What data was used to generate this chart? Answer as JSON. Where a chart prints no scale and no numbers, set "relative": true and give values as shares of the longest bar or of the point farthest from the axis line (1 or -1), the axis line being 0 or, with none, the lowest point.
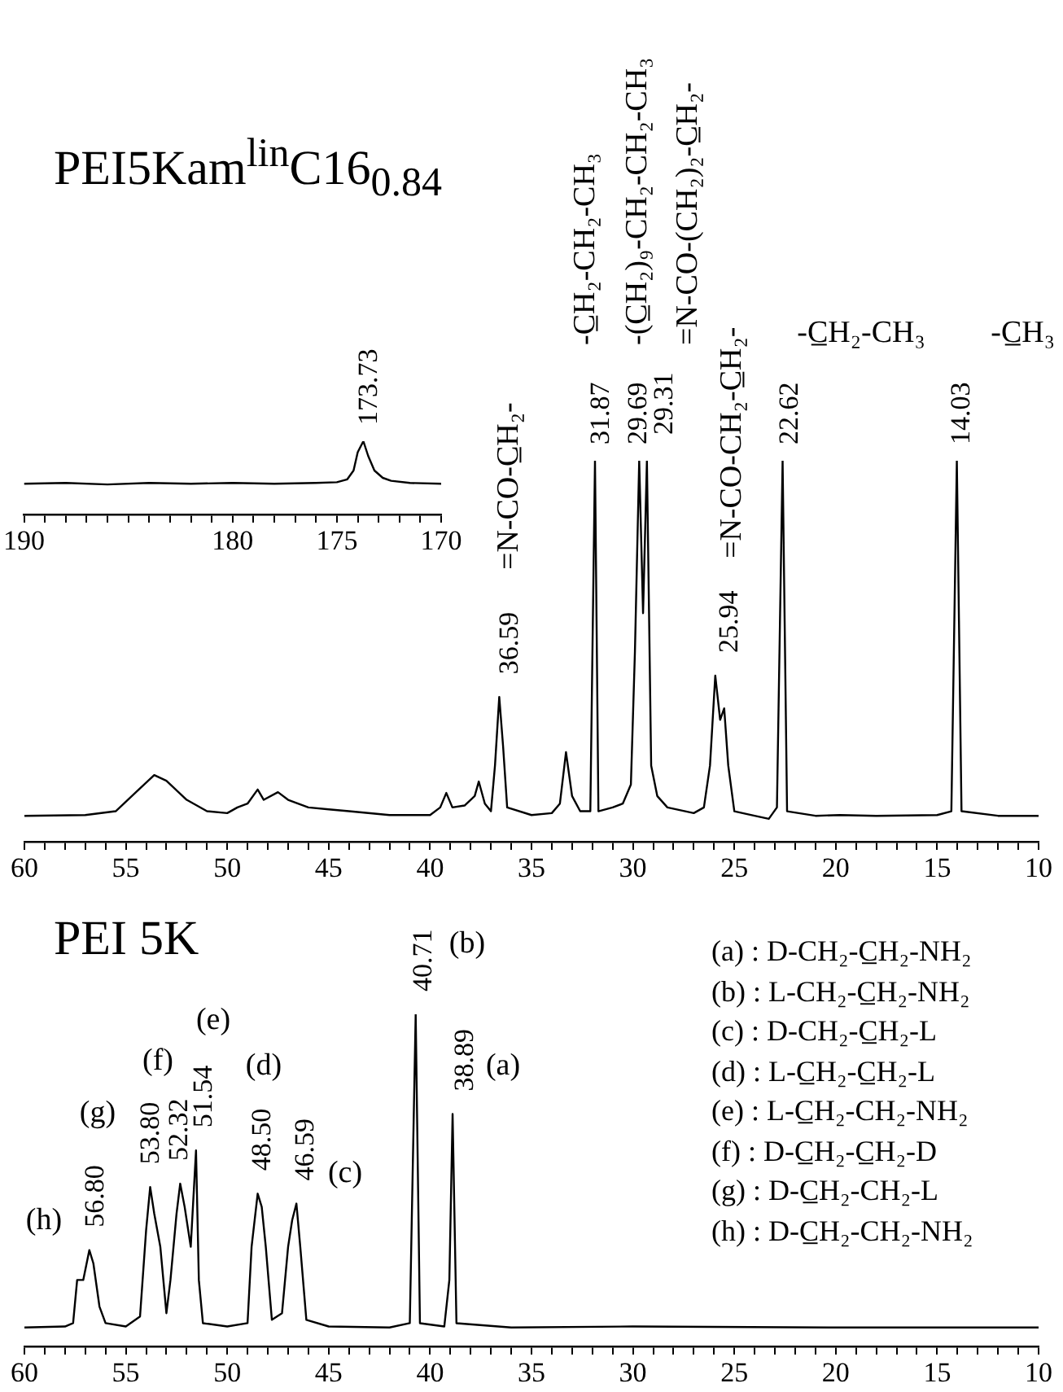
{
  "chart_data": [
    {
      "type": "line",
      "relative": true,
      "marker": "none",
      "xlim": [
        190,
        170
      ],
      "xticks": [
        190,
        {
          "value": 189,
          "label": null
        },
        {
          "value": 188,
          "label": null
        },
        {
          "value": 187,
          "label": null
        },
        {
          "value": 186,
          "label": null
        },
        {
          "value": 185,
          "label": null
        },
        {
          "value": 184,
          "label": null
        },
        {
          "value": 183,
          "label": null
        },
        {
          "value": 182,
          "label": null
        },
        {
          "value": 181,
          "label": null
        },
        180,
        {
          "value": 179,
          "label": null
        },
        {
          "value": 178,
          "label": null
        },
        {
          "value": 177,
          "label": null
        },
        {
          "value": 176,
          "label": null
        },
        175,
        {
          "value": 174,
          "label": null
        },
        {
          "value": 173,
          "label": null
        },
        {
          "value": 172,
          "label": null
        },
        {
          "value": 171,
          "label": null
        },
        170
      ],
      "x": [
        190,
        188,
        186,
        184,
        182,
        180,
        178,
        176,
        175,
        174.5,
        174.2,
        174,
        173.73,
        173.5,
        173.2,
        172.8,
        172.4,
        171.5,
        170
      ],
      "series": [
        {
          "color": "#000000",
          "values": [
            0.42,
            0.43,
            0.41,
            0.43,
            0.42,
            0.43,
            0.42,
            0.43,
            0.44,
            0.48,
            0.6,
            0.85,
            1,
            0.8,
            0.6,
            0.5,
            0.46,
            0.43,
            0.42
          ]
        }
      ],
      "annotations": [
        {
          "text": "173.73",
          "x": 173.73,
          "y": 1
        }
      ]
    },
    {
      "type": "line",
      "relative": true,
      "marker": "none",
      "title": "PEI5Kam$^{lin}$C16$_{0.84}$",
      "xlim": [
        60,
        10
      ],
      "xticks": [
        60,
        {
          "value": 59,
          "label": null
        },
        {
          "value": 58,
          "label": null
        },
        {
          "value": 57,
          "label": null
        },
        {
          "value": 56,
          "label": null
        },
        55,
        {
          "value": 54,
          "label": null
        },
        {
          "value": 53,
          "label": null
        },
        {
          "value": 52,
          "label": null
        },
        {
          "value": 51,
          "label": null
        },
        50,
        {
          "value": 49,
          "label": null
        },
        {
          "value": 48,
          "label": null
        },
        {
          "value": 47,
          "label": null
        },
        {
          "value": 46,
          "label": null
        },
        45,
        {
          "value": 44,
          "label": null
        },
        {
          "value": 43,
          "label": null
        },
        {
          "value": 42,
          "label": null
        },
        {
          "value": 41,
          "label": null
        },
        40,
        {
          "value": 39,
          "label": null
        },
        {
          "value": 38,
          "label": null
        },
        {
          "value": 37,
          "label": null
        },
        {
          "value": 36,
          "label": null
        },
        35,
        {
          "value": 34,
          "label": null
        },
        {
          "value": 33,
          "label": null
        },
        {
          "value": 32,
          "label": null
        },
        {
          "value": 31,
          "label": null
        },
        30,
        {
          "value": 29,
          "label": null
        },
        {
          "value": 28,
          "label": null
        },
        {
          "value": 27,
          "label": null
        },
        {
          "value": 26,
          "label": null
        },
        25,
        {
          "value": 24,
          "label": null
        },
        {
          "value": 23,
          "label": null
        },
        {
          "value": 22,
          "label": null
        },
        {
          "value": 21,
          "label": null
        },
        20,
        {
          "value": 19,
          "label": null
        },
        {
          "value": 18,
          "label": null
        },
        {
          "value": 17,
          "label": null
        },
        {
          "value": 16,
          "label": null
        },
        15,
        {
          "value": 14,
          "label": null
        },
        {
          "value": 13,
          "label": null
        },
        {
          "value": 12,
          "label": null
        },
        {
          "value": 11,
          "label": null
        },
        10
      ],
      "x": [
        60,
        57,
        55.5,
        54.5,
        53.6,
        53,
        52,
        51,
        50,
        49.5,
        49,
        48.5,
        48.2,
        47.5,
        47,
        46,
        45,
        44,
        42,
        40,
        39.5,
        39.2,
        38.9,
        38.3,
        37.8,
        37.6,
        37.3,
        37,
        36.8,
        36.59,
        36.4,
        36.2,
        35,
        34,
        33.6,
        33.3,
        33,
        32.6,
        32.1,
        31.87,
        31.7,
        31,
        30.5,
        30.1,
        29.9,
        29.69,
        29.5,
        29.31,
        29.1,
        28.8,
        28.3,
        27,
        26.5,
        26.2,
        25.94,
        25.7,
        25.5,
        25.3,
        25,
        24,
        23.3,
        22.9,
        22.62,
        22.4,
        21,
        19.8,
        18,
        15,
        14.3,
        14.03,
        13.8,
        12,
        10
      ],
      "series": [
        {
          "color": "#000000",
          "values": [
            0.068,
            0.07,
            0.08,
            0.13,
            0.175,
            0.16,
            0.11,
            0.08,
            0.075,
            0.09,
            0.1,
            0.137,
            0.11,
            0.13,
            0.11,
            0.09,
            0.085,
            0.08,
            0.07,
            0.07,
            0.09,
            0.128,
            0.09,
            0.095,
            0.12,
            0.158,
            0.1,
            0.08,
            0.2,
            0.38,
            0.25,
            0.09,
            0.07,
            0.075,
            0.1,
            0.235,
            0.12,
            0.08,
            0.08,
            1,
            0.08,
            0.09,
            0.1,
            0.15,
            0.5,
            1,
            0.6,
            1,
            0.2,
            0.12,
            0.09,
            0.075,
            0.09,
            0.2,
            0.436,
            0.32,
            0.35,
            0.2,
            0.08,
            0.068,
            0.06,
            0.09,
            1,
            0.08,
            0.068,
            0.07,
            0.068,
            0.07,
            0.08,
            1,
            0.08,
            0.068,
            0.068
          ]
        }
      ],
      "annotations": [
        {
          "text": "36.59",
          "x": 36.59,
          "y": 0.38
        },
        {
          "text": "31.87",
          "x": 31.87,
          "y": 1
        },
        {
          "text": "29.69",
          "x": 29.69,
          "y": 1
        },
        {
          "text": "29.31",
          "x": 29.31,
          "y": 1
        },
        {
          "text": "25.94",
          "x": 25.94,
          "y": 0.436
        },
        {
          "text": "22.62",
          "x": 22.62,
          "y": 1
        },
        {
          "text": "14.03",
          "x": 14.03,
          "y": 1
        },
        "=N-CO-C̲H₂-",
        "-C̲H₂-CH₂-CH₃",
        "-(C̲H₂)₉-CH₂-CH₂-CH₃",
        "=N-CO-(CH₂)₂-C̲H₂-",
        "=N-CO-CH₂-C̲H₂-",
        "-C̲H₂-CH₃",
        "-C̲H₃"
      ]
    },
    {
      "type": "line",
      "relative": true,
      "marker": "none",
      "title": "PEI 5K",
      "xlim": [
        60,
        10
      ],
      "xticks": [
        60,
        {
          "value": 59,
          "label": null
        },
        {
          "value": 58,
          "label": null
        },
        {
          "value": 57,
          "label": null
        },
        {
          "value": 56,
          "label": null
        },
        55,
        {
          "value": 54,
          "label": null
        },
        {
          "value": 53,
          "label": null
        },
        {
          "value": 52,
          "label": null
        },
        {
          "value": 51,
          "label": null
        },
        50,
        {
          "value": 49,
          "label": null
        },
        {
          "value": 48,
          "label": null
        },
        {
          "value": 47,
          "label": null
        },
        {
          "value": 46,
          "label": null
        },
        45,
        {
          "value": 44,
          "label": null
        },
        {
          "value": 43,
          "label": null
        },
        {
          "value": 42,
          "label": null
        },
        {
          "value": 41,
          "label": null
        },
        40,
        {
          "value": 39,
          "label": null
        },
        {
          "value": 38,
          "label": null
        },
        {
          "value": 37,
          "label": null
        },
        {
          "value": 36,
          "label": null
        },
        35,
        {
          "value": 34,
          "label": null
        },
        {
          "value": 33,
          "label": null
        },
        {
          "value": 32,
          "label": null
        },
        {
          "value": 31,
          "label": null
        },
        30,
        {
          "value": 29,
          "label": null
        },
        {
          "value": 28,
          "label": null
        },
        {
          "value": 27,
          "label": null
        },
        {
          "value": 26,
          "label": null
        },
        25,
        {
          "value": 24,
          "label": null
        },
        {
          "value": 23,
          "label": null
        },
        {
          "value": 22,
          "label": null
        },
        {
          "value": 21,
          "label": null
        },
        20,
        {
          "value": 19,
          "label": null
        },
        {
          "value": 18,
          "label": null
        },
        {
          "value": 17,
          "label": null
        },
        {
          "value": 16,
          "label": null
        },
        15,
        {
          "value": 14,
          "label": null
        },
        {
          "value": 13,
          "label": null
        },
        {
          "value": 12,
          "label": null
        },
        {
          "value": 11,
          "label": null
        },
        10
      ],
      "x": [
        60,
        58,
        57.6,
        57.4,
        57.1,
        56.8,
        56.6,
        56.3,
        56,
        55,
        54.3,
        54,
        53.8,
        53.6,
        53.3,
        53,
        52.8,
        52.5,
        52.32,
        52.1,
        51.8,
        51.54,
        51.4,
        51.2,
        50,
        49,
        48.8,
        48.5,
        48.3,
        48.1,
        47.8,
        47.3,
        47,
        46.8,
        46.59,
        46.4,
        46.1,
        45,
        42,
        41,
        40.71,
        40.5,
        39.3,
        39.05,
        38.89,
        38.7,
        36,
        30,
        20,
        10
      ],
      "series": [
        {
          "color": "#000000",
          "values": [
            0.057,
            0.06,
            0.07,
            0.2,
            0.2,
            0.29,
            0.25,
            0.12,
            0.07,
            0.06,
            0.09,
            0.35,
            0.48,
            0.4,
            0.3,
            0.1,
            0.2,
            0.4,
            0.49,
            0.42,
            0.3,
            0.59,
            0.2,
            0.07,
            0.06,
            0.07,
            0.3,
            0.46,
            0.42,
            0.3,
            0.08,
            0.1,
            0.3,
            0.38,
            0.43,
            0.3,
            0.08,
            0.06,
            0.057,
            0.07,
            1,
            0.07,
            0.06,
            0.2,
            0.7,
            0.07,
            0.057,
            0.06,
            0.057,
            0.057
          ]
        }
      ],
      "annotations": [
        {
          "text": "56.80",
          "x": 56.8,
          "y": 0.29
        },
        {
          "text": "53.80",
          "x": 53.8,
          "y": 0.48
        },
        {
          "text": "52.32",
          "x": 52.32,
          "y": 0.49
        },
        {
          "text": "51.54",
          "x": 51.54,
          "y": 0.59
        },
        {
          "text": "48.50",
          "x": 48.5,
          "y": 0.46
        },
        {
          "text": "46.59",
          "x": 46.59,
          "y": 0.43
        },
        {
          "text": "40.71",
          "x": 40.71,
          "y": 1
        },
        {
          "text": "38.89",
          "x": 38.89,
          "y": 0.7
        },
        "(h)",
        "(g)",
        "(f)",
        "(e)",
        "(d)",
        "(c)",
        "(b)",
        "(a)",
        "(a) : D-CH₂-C̲H₂-NH₂",
        "(b) : L-CH₂-C̲H₂-NH₂",
        "(c) : D-CH₂-C̲H₂-L",
        "(d) : L-C̲H₂-C̲H₂-L",
        "(e) : L-C̲H₂-CH₂-NH₂",
        "(f) : D-C̲H₂-C̲H₂-D",
        "(g) : D-C̲H₂-CH₂-L",
        "(h) : D-C̲H₂-CH₂-NH₂"
      ]
    }
  ]
}
